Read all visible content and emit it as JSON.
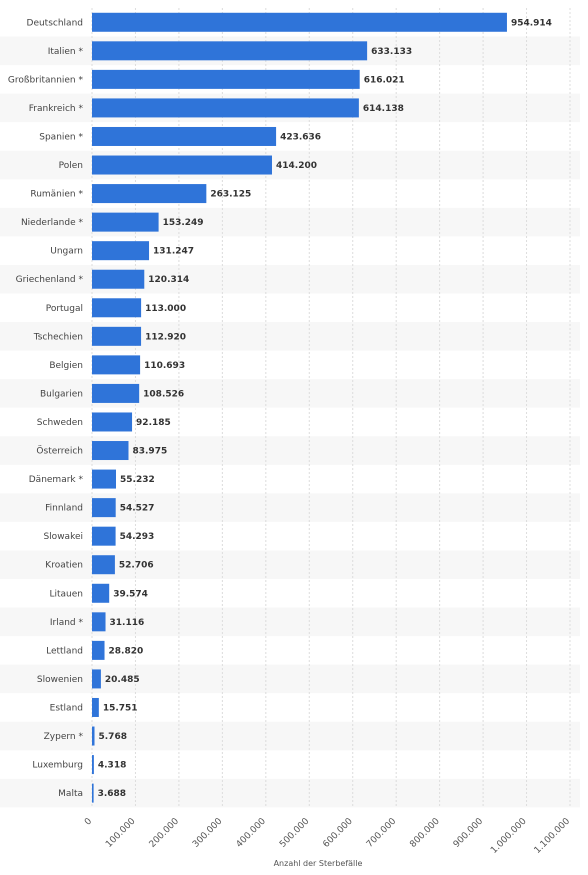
{
  "chart_data": {
    "type": "bar",
    "orientation": "horizontal",
    "categories": [
      "Deutschland",
      "Italien *",
      "Großbritannien *",
      "Frankreich *",
      "Spanien *",
      "Polen",
      "Rumänien *",
      "Niederlande *",
      "Ungarn",
      "Griechenland *",
      "Portugal",
      "Tschechien",
      "Belgien",
      "Bulgarien",
      "Schweden",
      "Österreich",
      "Dänemark *",
      "Finnland",
      "Slowakei",
      "Kroatien",
      "Litauen",
      "Irland *",
      "Lettland",
      "Slowenien",
      "Estland",
      "Zypern *",
      "Luxemburg",
      "Malta"
    ],
    "values": [
      954914,
      633133,
      616021,
      614138,
      423636,
      414200,
      263125,
      153249,
      131247,
      120314,
      113000,
      112920,
      110693,
      108526,
      92185,
      83975,
      55232,
      54527,
      54293,
      52706,
      39574,
      31116,
      28820,
      20485,
      15751,
      5768,
      4318,
      3688
    ],
    "value_labels": [
      "954.914",
      "633.133",
      "616.021",
      "614.138",
      "423.636",
      "414.200",
      "263.125",
      "153.249",
      "131.247",
      "120.314",
      "113.000",
      "112.920",
      "110.693",
      "108.526",
      "92.185",
      "83.975",
      "55.232",
      "54.527",
      "54.293",
      "52.706",
      "39.574",
      "31.116",
      "28.820",
      "20.485",
      "15.751",
      "5.768",
      "4.318",
      "3.688"
    ],
    "xlim": [
      0,
      1100000
    ],
    "ticks": [
      0,
      100000,
      200000,
      300000,
      400000,
      500000,
      600000,
      700000,
      800000,
      900000,
      1000000,
      1100000
    ],
    "tick_labels": [
      "0",
      "100.000",
      "200.000",
      "300.000",
      "400.000",
      "500.000",
      "600.000",
      "700.000",
      "800.000",
      "900.000",
      "1.000.000",
      "1.100.000"
    ],
    "xlabel": "Anzahl der Sterbefälle",
    "ylabel": "",
    "title": "",
    "grid": true,
    "legend": "none",
    "bar_color": "#2f74d9",
    "stripe_color": "#f7f7f7"
  }
}
